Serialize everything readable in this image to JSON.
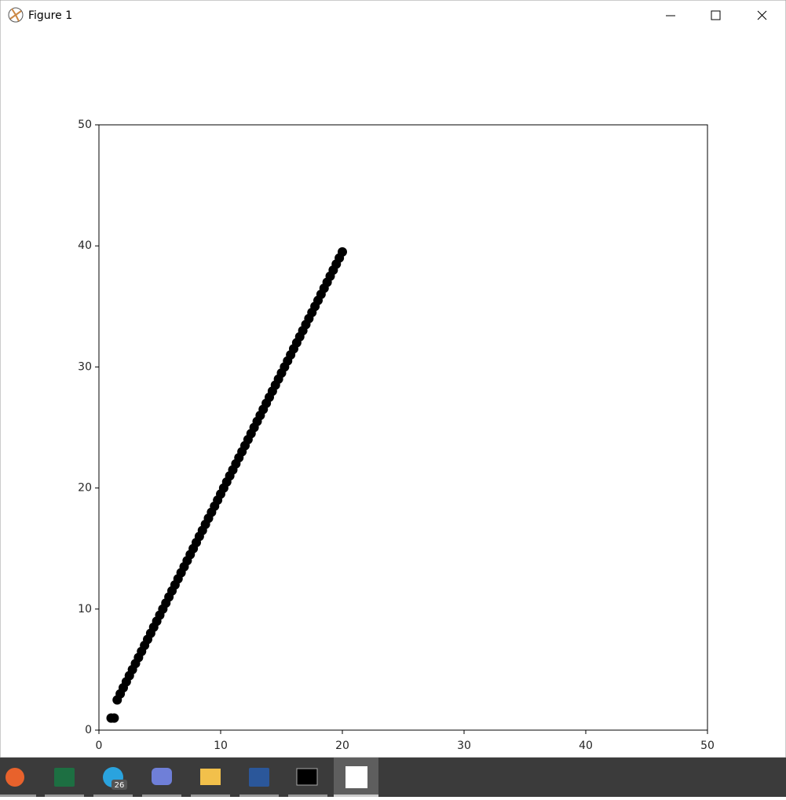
{
  "window": {
    "title": "Figure 1"
  },
  "chart_data": {
    "type": "scatter",
    "color": "#000000",
    "x": [
      1,
      1.25,
      1.5,
      1.75,
      2,
      2.25,
      2.5,
      2.75,
      3,
      3.25,
      3.5,
      3.75,
      4,
      4.25,
      4.5,
      4.75,
      5,
      5.25,
      5.5,
      5.75,
      6,
      6.25,
      6.5,
      6.75,
      7,
      7.25,
      7.5,
      7.75,
      8,
      8.25,
      8.5,
      8.75,
      9,
      9.25,
      9.5,
      9.75,
      10,
      10.25,
      10.5,
      10.75,
      11,
      11.25,
      11.5,
      11.75,
      12,
      12.25,
      12.5,
      12.75,
      13,
      13.25,
      13.5,
      13.75,
      14,
      14.25,
      14.5,
      14.75,
      15,
      15.25,
      15.5,
      15.75,
      16,
      16.25,
      16.5,
      16.75,
      17,
      17.25,
      17.5,
      17.75,
      18,
      18.25,
      18.5,
      18.75,
      19,
      19.25,
      19.5,
      19.75,
      20
    ],
    "y": [
      1,
      1,
      2.5,
      3,
      3.5,
      4,
      4.5,
      5,
      5.5,
      6,
      6.5,
      7,
      7.5,
      8,
      8.5,
      9,
      9.5,
      10,
      10.5,
      11,
      11.5,
      12,
      12.5,
      13,
      13.5,
      14,
      14.5,
      15,
      15.5,
      16,
      16.5,
      17,
      17.5,
      18,
      18.5,
      19,
      19.5,
      20,
      20.5,
      21,
      21.5,
      22,
      22.5,
      23,
      23.5,
      24,
      24.5,
      25,
      25.5,
      26,
      26.5,
      27,
      27.5,
      28,
      28.5,
      29,
      29.5,
      30,
      30.5,
      31,
      31.5,
      32,
      32.5,
      33,
      33.5,
      34,
      34.5,
      35,
      35.5,
      36,
      36.5,
      37,
      37.5,
      38,
      38.5,
      39,
      39.5
    ],
    "xlim": [
      0,
      50
    ],
    "ylim": [
      0,
      50
    ],
    "xticks": [
      0,
      10,
      20,
      30,
      40,
      50
    ],
    "yticks": [
      0,
      10,
      20,
      30,
      40,
      50
    ]
  },
  "taskbar": {
    "badge": "26"
  }
}
